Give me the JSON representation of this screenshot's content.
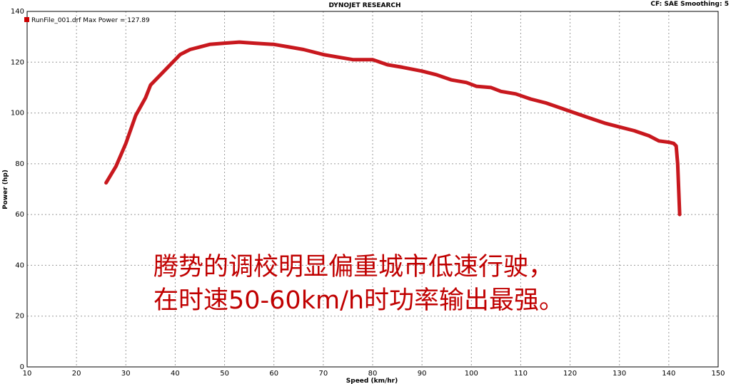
{
  "header": {
    "title": "DYNOJET RESEARCH",
    "settings": "CF: SAE  Smoothing: 5"
  },
  "legend": {
    "label": "RunFile_001.drf Max Power = 127.89",
    "color": "#1f3fbf",
    "swatch_color": "#cc0000"
  },
  "caption": {
    "line1": "腾势的调校明显偏重城市低速行驶，",
    "line2": "在时速50-60km/h时功率输出最强。",
    "color": "#c00000"
  },
  "chart_data": {
    "type": "line",
    "title": "DYNOJET RESEARCH",
    "xlabel": "Speed (km/hr)",
    "ylabel": "Power (hp)",
    "xlim": [
      10,
      150
    ],
    "ylim": [
      0,
      140
    ],
    "x_ticks": [
      10,
      20,
      30,
      40,
      50,
      60,
      70,
      80,
      90,
      100,
      110,
      120,
      130,
      140,
      150
    ],
    "y_ticks": [
      0,
      20,
      40,
      60,
      80,
      100,
      120,
      140
    ],
    "grid": true,
    "legend_position": "top-left",
    "series": [
      {
        "name": "RunFile_001.drf",
        "color": "#c8181e",
        "points": [
          [
            26,
            72.5
          ],
          [
            28,
            79
          ],
          [
            30,
            88
          ],
          [
            32,
            99
          ],
          [
            34,
            106
          ],
          [
            35,
            111
          ],
          [
            37,
            115
          ],
          [
            39,
            119
          ],
          [
            41,
            123
          ],
          [
            43,
            125
          ],
          [
            45,
            126
          ],
          [
            47,
            127
          ],
          [
            50,
            127.5
          ],
          [
            53,
            127.9
          ],
          [
            56,
            127.5
          ],
          [
            60,
            127
          ],
          [
            63,
            126
          ],
          [
            66,
            125
          ],
          [
            68,
            124
          ],
          [
            70,
            123
          ],
          [
            73,
            122
          ],
          [
            76,
            121
          ],
          [
            80,
            121
          ],
          [
            83,
            119
          ],
          [
            86,
            118
          ],
          [
            90,
            116.5
          ],
          [
            93,
            115
          ],
          [
            96,
            113
          ],
          [
            99,
            112
          ],
          [
            101,
            110.5
          ],
          [
            104,
            110
          ],
          [
            106,
            108.5
          ],
          [
            109,
            107.5
          ],
          [
            112,
            105.5
          ],
          [
            115,
            104
          ],
          [
            118,
            102
          ],
          [
            121,
            100
          ],
          [
            124,
            98
          ],
          [
            127,
            96
          ],
          [
            130,
            94.5
          ],
          [
            133,
            93
          ],
          [
            136,
            91
          ],
          [
            138,
            89
          ],
          [
            140,
            88.5
          ],
          [
            141,
            88
          ],
          [
            141.5,
            87
          ],
          [
            141.8,
            80
          ],
          [
            142,
            70
          ],
          [
            142.2,
            60
          ]
        ]
      }
    ]
  }
}
